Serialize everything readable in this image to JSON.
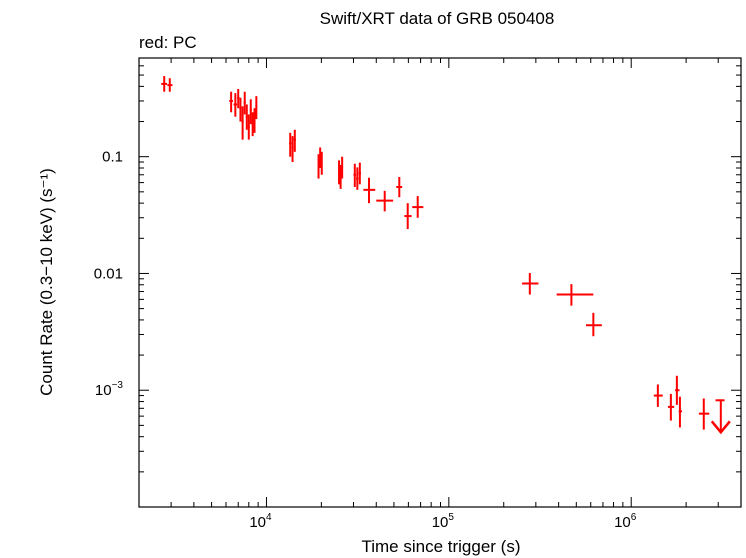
{
  "chart_data": {
    "type": "scatter",
    "title": "Swift/XRT data of GRB 050408",
    "subtitle": "red: PC",
    "xlabel": "Time since trigger (s)",
    "ylabel": "Count Rate (0.3−10 keV) (s⁻¹)",
    "xscale": "log",
    "yscale": "log",
    "xlim": [
      2000,
      4000000
    ],
    "ylim": [
      0.0001,
      0.7
    ],
    "x_ticks": [
      {
        "value": 10000,
        "base": "10",
        "exp": "4"
      },
      {
        "value": 100000,
        "base": "10",
        "exp": "5"
      },
      {
        "value": 1000000,
        "base": "10",
        "exp": "6"
      }
    ],
    "y_ticks": [
      {
        "value": 0.001,
        "base": "10",
        "exp": "−3"
      },
      {
        "value": 0.01,
        "label": "0.01"
      },
      {
        "value": 0.1,
        "label": "0.1"
      }
    ],
    "grid": false,
    "series": [
      {
        "color": "#ff0000",
        "points": [
          {
            "x": 2750,
            "xlo": 2650,
            "xhi": 2850,
            "y": 0.42,
            "ylo": 0.36,
            "yhi": 0.49
          },
          {
            "x": 2950,
            "xlo": 2860,
            "xhi": 3050,
            "y": 0.41,
            "ylo": 0.36,
            "yhi": 0.47
          },
          {
            "x": 6400,
            "xlo": 6250,
            "xhi": 6550,
            "y": 0.3,
            "ylo": 0.24,
            "yhi": 0.36
          },
          {
            "x": 6750,
            "xlo": 6600,
            "xhi": 6900,
            "y": 0.28,
            "ylo": 0.22,
            "yhi": 0.35
          },
          {
            "x": 7000,
            "xlo": 6900,
            "xhi": 7100,
            "y": 0.32,
            "ylo": 0.26,
            "yhi": 0.38
          },
          {
            "x": 7200,
            "xlo": 7100,
            "xhi": 7300,
            "y": 0.26,
            "ylo": 0.2,
            "yhi": 0.32
          },
          {
            "x": 7400,
            "xlo": 7300,
            "xhi": 7500,
            "y": 0.2,
            "ylo": 0.14,
            "yhi": 0.27
          },
          {
            "x": 7600,
            "xlo": 7500,
            "xhi": 7700,
            "y": 0.29,
            "ylo": 0.23,
            "yhi": 0.36
          },
          {
            "x": 7800,
            "xlo": 7700,
            "xhi": 7900,
            "y": 0.22,
            "ylo": 0.17,
            "yhi": 0.28
          },
          {
            "x": 8000,
            "xlo": 7900,
            "xhi": 8100,
            "y": 0.18,
            "ylo": 0.14,
            "yhi": 0.23
          },
          {
            "x": 8200,
            "xlo": 8100,
            "xhi": 8300,
            "y": 0.25,
            "ylo": 0.19,
            "yhi": 0.31
          },
          {
            "x": 8400,
            "xlo": 8300,
            "xhi": 8500,
            "y": 0.19,
            "ylo": 0.15,
            "yhi": 0.24
          },
          {
            "x": 8600,
            "xlo": 8500,
            "xhi": 8700,
            "y": 0.21,
            "ylo": 0.16,
            "yhi": 0.26
          },
          {
            "x": 8800,
            "xlo": 8700,
            "xhi": 8900,
            "y": 0.27,
            "ylo": 0.21,
            "yhi": 0.33
          },
          {
            "x": 13500,
            "xlo": 13300,
            "xhi": 13700,
            "y": 0.13,
            "ylo": 0.1,
            "yhi": 0.16
          },
          {
            "x": 13900,
            "xlo": 13700,
            "xhi": 14100,
            "y": 0.12,
            "ylo": 0.09,
            "yhi": 0.15
          },
          {
            "x": 14300,
            "xlo": 14100,
            "xhi": 14500,
            "y": 0.14,
            "ylo": 0.11,
            "yhi": 0.17
          },
          {
            "x": 19300,
            "xlo": 19100,
            "xhi": 19500,
            "y": 0.085,
            "ylo": 0.065,
            "yhi": 0.105
          },
          {
            "x": 19700,
            "xlo": 19500,
            "xhi": 19900,
            "y": 0.1,
            "ylo": 0.08,
            "yhi": 0.12
          },
          {
            "x": 20100,
            "xlo": 19900,
            "xhi": 20300,
            "y": 0.09,
            "ylo": 0.07,
            "yhi": 0.11
          },
          {
            "x": 25000,
            "xlo": 24700,
            "xhi": 25300,
            "y": 0.075,
            "ylo": 0.058,
            "yhi": 0.093
          },
          {
            "x": 25500,
            "xlo": 25300,
            "xhi": 25700,
            "y": 0.068,
            "ylo": 0.053,
            "yhi": 0.085
          },
          {
            "x": 26000,
            "xlo": 25700,
            "xhi": 26300,
            "y": 0.082,
            "ylo": 0.065,
            "yhi": 0.1
          },
          {
            "x": 30500,
            "xlo": 30000,
            "xhi": 31000,
            "y": 0.07,
            "ylo": 0.055,
            "yhi": 0.087
          },
          {
            "x": 31500,
            "xlo": 31000,
            "xhi": 32000,
            "y": 0.065,
            "ylo": 0.052,
            "yhi": 0.081
          },
          {
            "x": 32500,
            "xlo": 32000,
            "xhi": 33000,
            "y": 0.072,
            "ylo": 0.058,
            "yhi": 0.089
          },
          {
            "x": 36500,
            "xlo": 34000,
            "xhi": 39500,
            "y": 0.052,
            "ylo": 0.04,
            "yhi": 0.066
          },
          {
            "x": 44500,
            "xlo": 40000,
            "xhi": 49500,
            "y": 0.042,
            "ylo": 0.034,
            "yhi": 0.051
          },
          {
            "x": 53500,
            "xlo": 51500,
            "xhi": 55500,
            "y": 0.055,
            "ylo": 0.045,
            "yhi": 0.067
          },
          {
            "x": 59500,
            "xlo": 57000,
            "xhi": 62500,
            "y": 0.031,
            "ylo": 0.024,
            "yhi": 0.04
          },
          {
            "x": 67500,
            "xlo": 63000,
            "xhi": 72500,
            "y": 0.037,
            "ylo": 0.03,
            "yhi": 0.046
          },
          {
            "x": 278000,
            "xlo": 252000,
            "xhi": 310000,
            "y": 0.0082,
            "ylo": 0.0066,
            "yhi": 0.0101
          },
          {
            "x": 470000,
            "xlo": 390000,
            "xhi": 620000,
            "y": 0.0066,
            "ylo": 0.0053,
            "yhi": 0.0081
          },
          {
            "x": 620000,
            "xlo": 565000,
            "xhi": 690000,
            "y": 0.0036,
            "ylo": 0.0029,
            "yhi": 0.0046
          },
          {
            "x": 1400000,
            "xlo": 1330000,
            "xhi": 1490000,
            "y": 0.0009,
            "ylo": 0.00072,
            "yhi": 0.00112
          },
          {
            "x": 1650000,
            "xlo": 1590000,
            "xhi": 1720000,
            "y": 0.00072,
            "ylo": 0.00055,
            "yhi": 0.00093
          },
          {
            "x": 1780000,
            "xlo": 1740000,
            "xhi": 1840000,
            "y": 0.001,
            "ylo": 0.00075,
            "yhi": 0.00133
          },
          {
            "x": 1850000,
            "xlo": 1820000,
            "xhi": 1900000,
            "y": 0.00066,
            "ylo": 0.00048,
            "yhi": 0.00088
          },
          {
            "x": 2500000,
            "xlo": 2350000,
            "xhi": 2680000,
            "y": 0.00063,
            "ylo": 0.00046,
            "yhi": 0.00085
          }
        ],
        "upper_limits": [
          {
            "x": 3100000,
            "xlo": 2900000,
            "xhi": 3250000,
            "y": 0.00082
          }
        ]
      }
    ]
  }
}
